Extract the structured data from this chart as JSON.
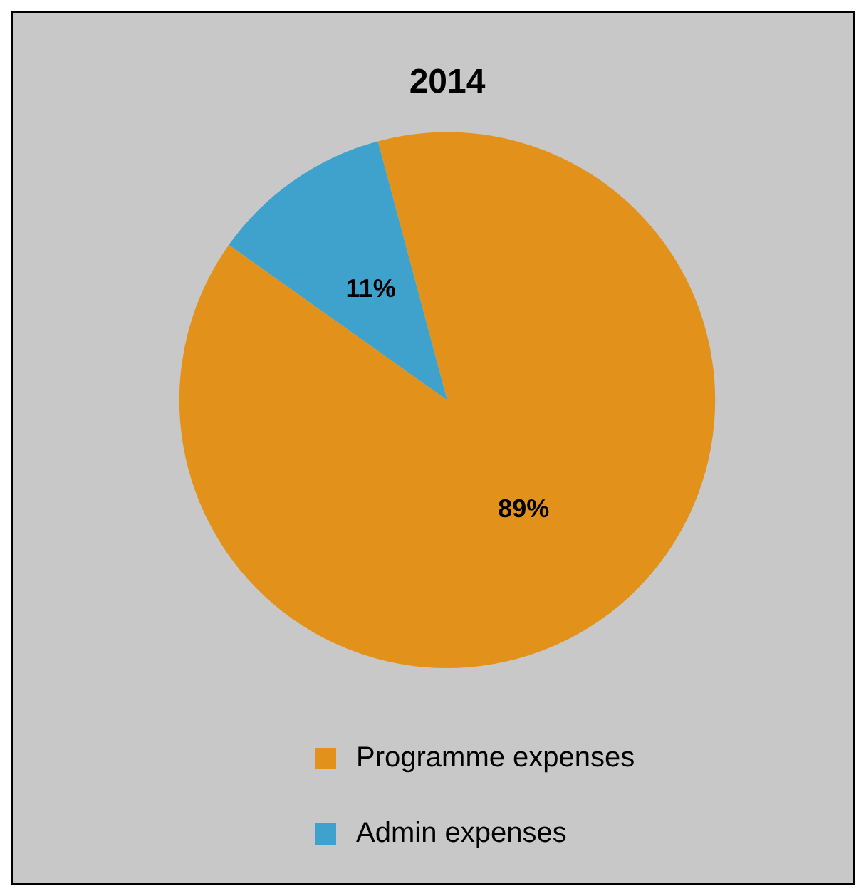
{
  "chart_data": {
    "type": "pie",
    "title": "2014",
    "categories": [
      "Programme expenses",
      "Admin expenses"
    ],
    "values": [
      89,
      11
    ],
    "colors": [
      "#e2921a",
      "#3ea2cc"
    ],
    "value_labels": [
      "89%",
      "11%"
    ],
    "legend": "bottom"
  }
}
